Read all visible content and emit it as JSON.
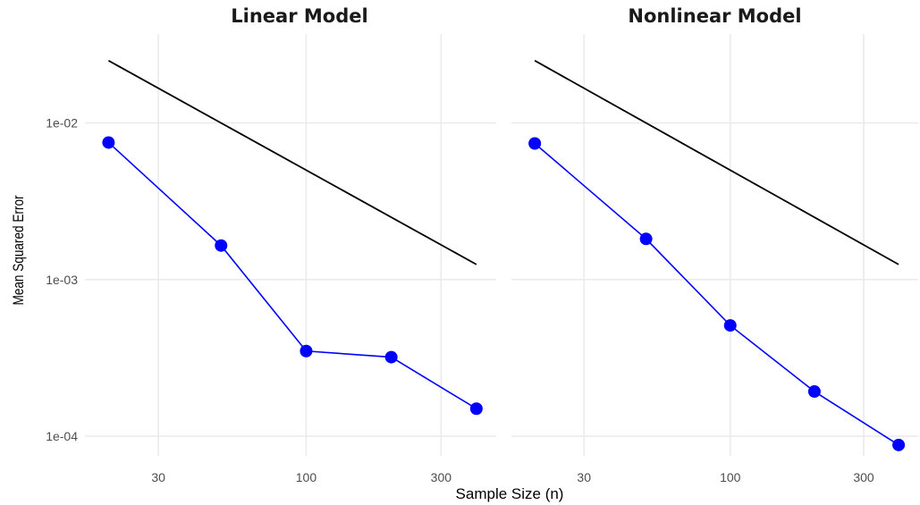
{
  "figure": {
    "xlabel": "Sample Size (n)",
    "ylabel": "Mean Squared Error"
  },
  "chart_data": [
    {
      "type": "line",
      "title": "Linear Model",
      "xscale": "log",
      "yscale": "log",
      "xlim": [
        16.5,
        470
      ],
      "ylim": [
        7.5e-05,
        0.037
      ],
      "xticks": [
        30,
        100,
        300
      ],
      "xtick_labels": [
        "30",
        "100",
        "300"
      ],
      "yticks": [
        0.0001,
        0.001,
        0.01
      ],
      "ytick_labels": [
        "1e-04",
        "1e-03",
        "1e-02"
      ],
      "grid": true,
      "series": [
        {
          "color": "#0000ff",
          "marker": "circle",
          "x": [
            20,
            50,
            100,
            200,
            400
          ],
          "y": [
            0.0075,
            0.00165,
            0.00035,
            0.00032,
            0.00015
          ]
        },
        {
          "color": "#000000",
          "marker": "none",
          "x": [
            20,
            400
          ],
          "y": [
            0.025,
            0.00125
          ]
        }
      ]
    },
    {
      "type": "line",
      "title": "Nonlinear Model",
      "xscale": "log",
      "yscale": "log",
      "xlim": [
        16.5,
        470
      ],
      "ylim": [
        7.5e-05,
        0.037
      ],
      "xticks": [
        30,
        100,
        300
      ],
      "xtick_labels": [
        "30",
        "100",
        "300"
      ],
      "yticks": [
        0.0001,
        0.001,
        0.01
      ],
      "ytick_labels": [
        "1e-04",
        "1e-03",
        "1e-02"
      ],
      "grid": true,
      "series": [
        {
          "color": "#0000ff",
          "marker": "circle",
          "x": [
            20,
            50,
            100,
            200,
            400
          ],
          "y": [
            0.0074,
            0.00182,
            0.00051,
            0.000193,
            8.8e-05
          ]
        },
        {
          "color": "#000000",
          "marker": "none",
          "x": [
            20,
            400
          ],
          "y": [
            0.025,
            0.00125
          ]
        }
      ]
    }
  ]
}
